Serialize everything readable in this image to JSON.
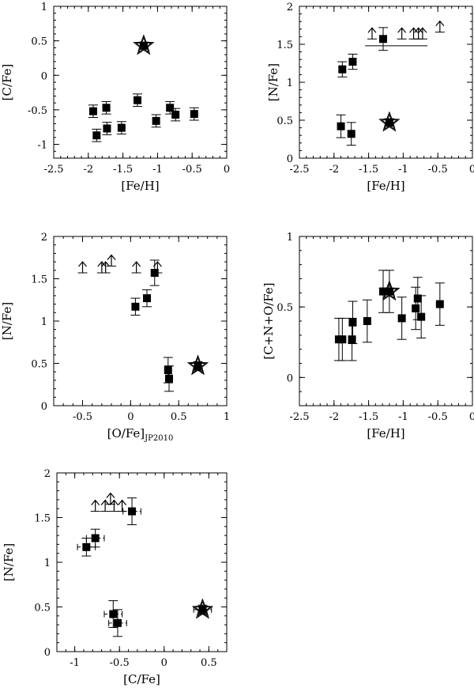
{
  "chart_data": [
    {
      "id": "p1",
      "type": "scatter",
      "xlabel": "[Fe/H]",
      "ylabel": "[C/Fe]",
      "xlim": [
        -2.5,
        0
      ],
      "ylim": [
        -1.2,
        1
      ],
      "xticks": [
        -2.5,
        -2,
        -1.5,
        -1,
        -0.5,
        0
      ],
      "yticks": [
        -1,
        -0.5,
        0,
        0.5,
        1
      ],
      "points": [
        {
          "x": -1.93,
          "y": -0.52,
          "err": 0.09
        },
        {
          "x": -1.88,
          "y": -0.87,
          "err": 0.09
        },
        {
          "x": -1.74,
          "y": -0.47,
          "err": 0.09
        },
        {
          "x": -1.73,
          "y": -0.77,
          "err": 0.09
        },
        {
          "x": -1.52,
          "y": -0.76,
          "err": 0.09
        },
        {
          "x": -1.29,
          "y": -0.36,
          "err": 0.09
        },
        {
          "x": -1.02,
          "y": -0.66,
          "err": 0.09
        },
        {
          "x": -0.82,
          "y": -0.47,
          "err": 0.09
        },
        {
          "x": -0.74,
          "y": -0.57,
          "err": 0.09
        },
        {
          "x": -0.47,
          "y": -0.56,
          "err": 0.09
        }
      ],
      "stars": [
        {
          "x": -1.2,
          "y": 0.43,
          "err": 0.05
        }
      ],
      "limits": []
    },
    {
      "id": "p2",
      "type": "scatter",
      "xlabel": "[Fe/H]",
      "ylabel": "[N/Fe]",
      "xlim": [
        -2.5,
        0
      ],
      "ylim": [
        0,
        2
      ],
      "xticks": [
        -2.5,
        -2,
        -1.5,
        -1,
        -0.5,
        0
      ],
      "yticks": [
        0,
        0.5,
        1,
        1.5,
        2
      ],
      "points": [
        {
          "x": -1.88,
          "y": 1.17,
          "err": 0.1
        },
        {
          "x": -1.73,
          "y": 1.27,
          "err": 0.1
        },
        {
          "x": -1.9,
          "y": 0.42,
          "err": 0.15
        },
        {
          "x": -1.75,
          "y": 0.32,
          "err": 0.15
        },
        {
          "x": -1.29,
          "y": 1.57,
          "err": 0.15
        }
      ],
      "stars": [
        {
          "x": -1.2,
          "y": 0.47,
          "err": 0.05
        }
      ],
      "limits": [
        {
          "x": -1.45,
          "y": 1.57
        },
        {
          "x": -1.02,
          "y": 1.57
        },
        {
          "x": -0.85,
          "y": 1.57
        },
        {
          "x": -0.78,
          "y": 1.57
        },
        {
          "x": -0.72,
          "y": 1.57
        },
        {
          "x": -0.47,
          "y": 1.66
        }
      ],
      "hline": {
        "x1": -1.55,
        "x2": -0.65,
        "y": 1.48
      }
    },
    {
      "id": "p3",
      "type": "scatter",
      "xlabel": "[O/Fe]",
      "xlabel_sub": "JP2010",
      "ylabel": "[N/Fe]",
      "xlim": [
        -0.8,
        1
      ],
      "ylim": [
        0,
        2
      ],
      "xticks": [
        -0.5,
        0,
        0.5,
        1
      ],
      "yticks": [
        0,
        0.5,
        1,
        1.5,
        2
      ],
      "points": [
        {
          "x": 0.05,
          "y": 1.17,
          "err": 0.1
        },
        {
          "x": 0.17,
          "y": 1.27,
          "err": 0.1
        },
        {
          "x": 0.25,
          "y": 1.57,
          "err": 0.15
        },
        {
          "x": 0.39,
          "y": 0.42,
          "err": 0.15
        },
        {
          "x": 0.4,
          "y": 0.32,
          "err": 0.15
        }
      ],
      "stars": [
        {
          "x": 0.7,
          "y": 0.47,
          "err": 0.05
        }
      ],
      "limits": [
        {
          "x": -0.5,
          "y": 1.57
        },
        {
          "x": -0.3,
          "y": 1.57
        },
        {
          "x": -0.26,
          "y": 1.57
        },
        {
          "x": -0.2,
          "y": 1.65
        },
        {
          "x": 0.06,
          "y": 1.57
        },
        {
          "x": 0.28,
          "y": 1.57
        }
      ]
    },
    {
      "id": "p4",
      "type": "scatter",
      "xlabel": "[Fe/H]",
      "ylabel": "[C+N+O/Fe]",
      "xlim": [
        -2.5,
        0
      ],
      "ylim": [
        -0.2,
        1
      ],
      "xticks": [
        -2.5,
        -2,
        -1.5,
        -1,
        -0.5,
        0
      ],
      "yticks": [
        0,
        0.5,
        1
      ],
      "points": [
        {
          "x": -1.93,
          "y": 0.27,
          "err": 0.15
        },
        {
          "x": -1.88,
          "y": 0.27,
          "err": 0.15
        },
        {
          "x": -1.74,
          "y": 0.27,
          "err": 0.15
        },
        {
          "x": -1.73,
          "y": 0.39,
          "err": 0.15
        },
        {
          "x": -1.52,
          "y": 0.4,
          "err": 0.15
        },
        {
          "x": -1.29,
          "y": 0.61,
          "err": 0.15
        },
        {
          "x": -1.02,
          "y": 0.42,
          "err": 0.15
        },
        {
          "x": -0.82,
          "y": 0.49,
          "err": 0.15
        },
        {
          "x": -0.79,
          "y": 0.56,
          "err": 0.15
        },
        {
          "x": -0.74,
          "y": 0.43,
          "err": 0.15
        },
        {
          "x": -0.47,
          "y": 0.52,
          "err": 0.15
        }
      ],
      "stars": [
        {
          "x": -1.2,
          "y": 0.61,
          "err": 0.15
        }
      ],
      "limits": []
    },
    {
      "id": "p5",
      "type": "scatter",
      "xlabel": "[C/Fe]",
      "ylabel": "[N/Fe]",
      "xlim": [
        -1.2,
        0.7
      ],
      "ylim": [
        0,
        2
      ],
      "xticks": [
        -1,
        -0.5,
        0,
        0.5
      ],
      "yticks": [
        0,
        0.5,
        1,
        1.5,
        2
      ],
      "xerr_style": "dashed",
      "points": [
        {
          "x": -0.87,
          "y": 1.17,
          "err": 0.1,
          "xerr": 0.1
        },
        {
          "x": -0.77,
          "y": 1.27,
          "err": 0.1,
          "xerr": 0.1
        },
        {
          "x": -0.57,
          "y": 0.42,
          "err": 0.15,
          "xerr": 0.1
        },
        {
          "x": -0.52,
          "y": 0.32,
          "err": 0.15,
          "xerr": 0.1
        },
        {
          "x": -0.36,
          "y": 1.57,
          "err": 0.15,
          "xerr": 0.1
        }
      ],
      "stars": [
        {
          "x": 0.43,
          "y": 0.47,
          "err": 0.05,
          "xerr": 0.1
        }
      ],
      "limits": [
        {
          "x": -0.77,
          "y": 1.57
        },
        {
          "x": -0.66,
          "y": 1.57
        },
        {
          "x": -0.56,
          "y": 1.57
        },
        {
          "x": -0.6,
          "y": 1.65
        },
        {
          "x": -0.47,
          "y": 1.57
        }
      ]
    }
  ]
}
